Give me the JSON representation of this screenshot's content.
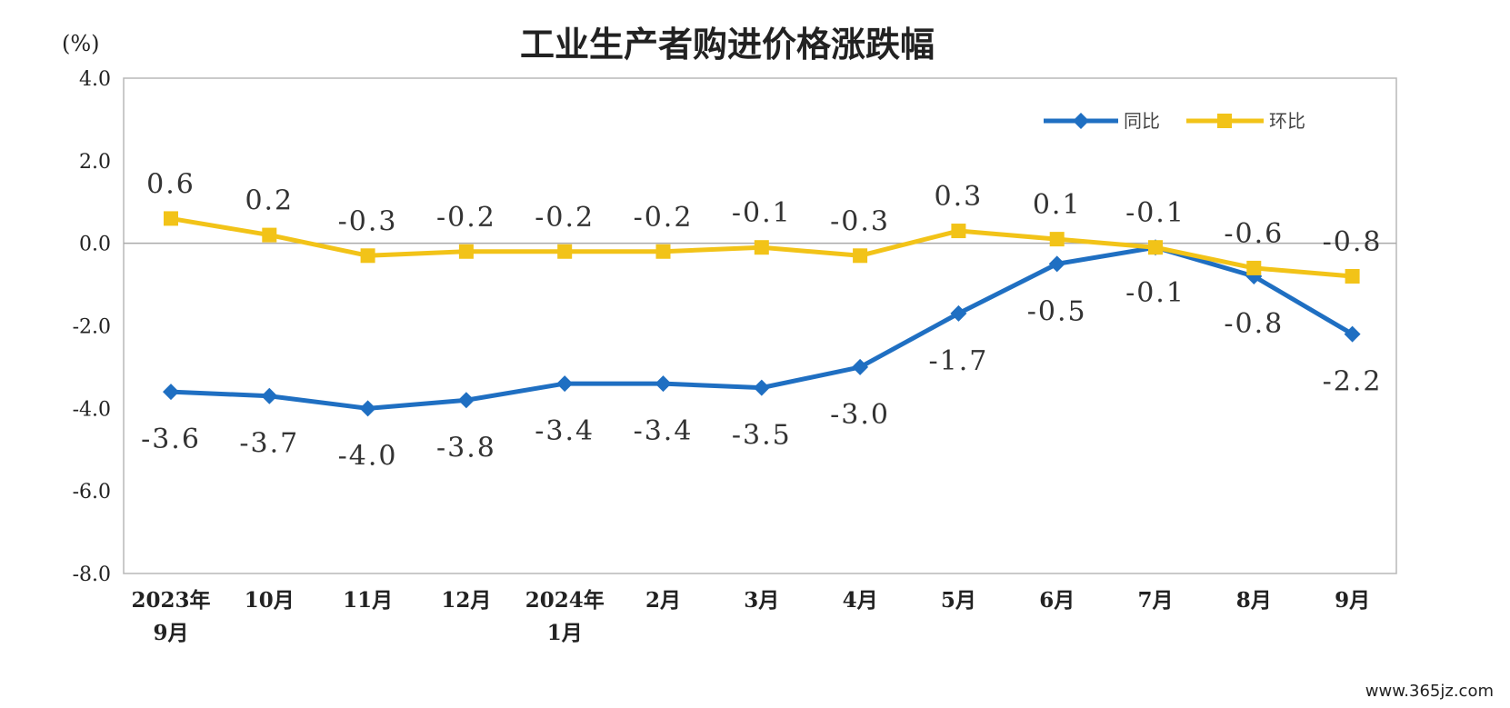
{
  "chart_data": {
    "type": "line",
    "title": "工业生产者购进价格涨跌幅",
    "unit_label": "(%)",
    "categories": [
      [
        "2023年",
        "9月"
      ],
      [
        "10月"
      ],
      [
        "11月"
      ],
      [
        "12月"
      ],
      [
        "2024年",
        "1月"
      ],
      [
        "2月"
      ],
      [
        "3月"
      ],
      [
        "4月"
      ],
      [
        "5月"
      ],
      [
        "6月"
      ],
      [
        "7月"
      ],
      [
        "8月"
      ],
      [
        "9月"
      ]
    ],
    "ylim": [
      -8.0,
      4.0
    ],
    "yticks": [
      "4.0",
      "2.0",
      "0.0",
      "-2.0",
      "-4.0",
      "-6.0",
      "-8.0"
    ],
    "ytick_values": [
      4,
      2,
      0,
      -2,
      -4,
      -6,
      -8
    ],
    "series": [
      {
        "name": "同比",
        "color": "#1f6fc2",
        "marker": "diamond",
        "values": [
          -3.6,
          -3.7,
          -4.0,
          -3.8,
          -3.4,
          -3.4,
          -3.5,
          -3.0,
          -1.7,
          -0.5,
          -0.1,
          -0.8,
          -2.2
        ],
        "labels": [
          "-3.6",
          "-3.7",
          "-4.0",
          "-3.8",
          "-3.4",
          "-3.4",
          "-3.5",
          "-3.0",
          "-1.7",
          "-0.5",
          "-0.1",
          "-0.8",
          "-2.2"
        ]
      },
      {
        "name": "环比",
        "color": "#f2c318",
        "marker": "square",
        "values": [
          0.6,
          0.2,
          -0.3,
          -0.2,
          -0.2,
          -0.2,
          -0.1,
          -0.3,
          0.3,
          0.1,
          -0.1,
          -0.6,
          -0.8
        ],
        "labels": [
          "0.6",
          "0.2",
          "-0.3",
          "-0.2",
          "-0.2",
          "-0.2",
          "-0.1",
          "-0.3",
          "0.3",
          "0.1",
          "-0.1",
          "-0.6",
          "-0.8"
        ]
      }
    ],
    "legend_position": "top-right",
    "grid": false
  },
  "watermark": "www.365jz.com"
}
